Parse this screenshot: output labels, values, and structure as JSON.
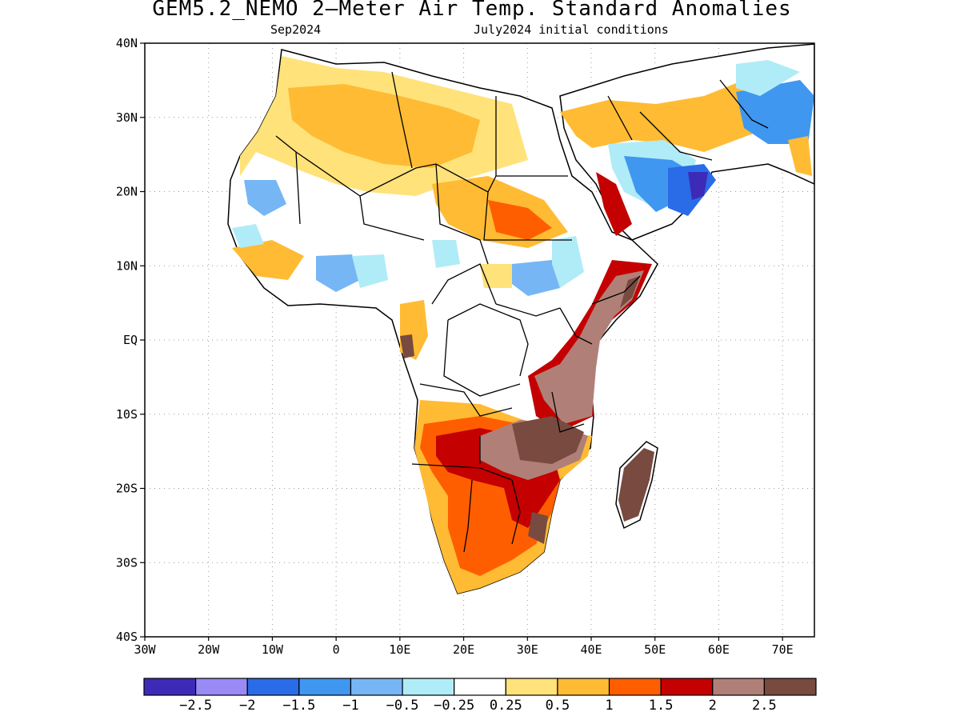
{
  "title": "GEM5.2_NEMO 2–Meter Air Temp. Standard Anomalies",
  "subtitle_left": "Sep2024",
  "subtitle_right": "July2024 initial conditions",
  "map": {
    "lon_range": [
      -30,
      75
    ],
    "lat_range": [
      -40,
      40
    ],
    "lat_ticks": [
      {
        "value": 40,
        "label": "40N"
      },
      {
        "value": 30,
        "label": "30N"
      },
      {
        "value": 20,
        "label": "20N"
      },
      {
        "value": 10,
        "label": "10N"
      },
      {
        "value": 0,
        "label": "EQ"
      },
      {
        "value": -10,
        "label": "10S"
      },
      {
        "value": -20,
        "label": "20S"
      },
      {
        "value": -30,
        "label": "30S"
      },
      {
        "value": -40,
        "label": "40S"
      }
    ],
    "lon_ticks": [
      {
        "value": -30,
        "label": "30W"
      },
      {
        "value": -20,
        "label": "20W"
      },
      {
        "value": -10,
        "label": "10W"
      },
      {
        "value": 0,
        "label": "0"
      },
      {
        "value": 10,
        "label": "10E"
      },
      {
        "value": 20,
        "label": "20E"
      },
      {
        "value": 30,
        "label": "30E"
      },
      {
        "value": 40,
        "label": "40E"
      },
      {
        "value": 50,
        "label": "50E"
      },
      {
        "value": 60,
        "label": "60E"
      },
      {
        "value": 70,
        "label": "70E"
      }
    ]
  },
  "colorbar": {
    "colors": [
      "#3d2bb8",
      "#9a8af5",
      "#2a6be8",
      "#3f97f0",
      "#76b6f5",
      "#b0ecf7",
      "#ffffff",
      "#ffe27a",
      "#ffbb33",
      "#ff5e00",
      "#c40000",
      "#b08078",
      "#784a40"
    ],
    "labels": [
      "−2.5",
      "−2",
      "−1.5",
      "−1",
      "−0.5",
      "−0.25",
      "0.25",
      "0.5",
      "1",
      "1.5",
      "2",
      "2.5"
    ]
  }
}
